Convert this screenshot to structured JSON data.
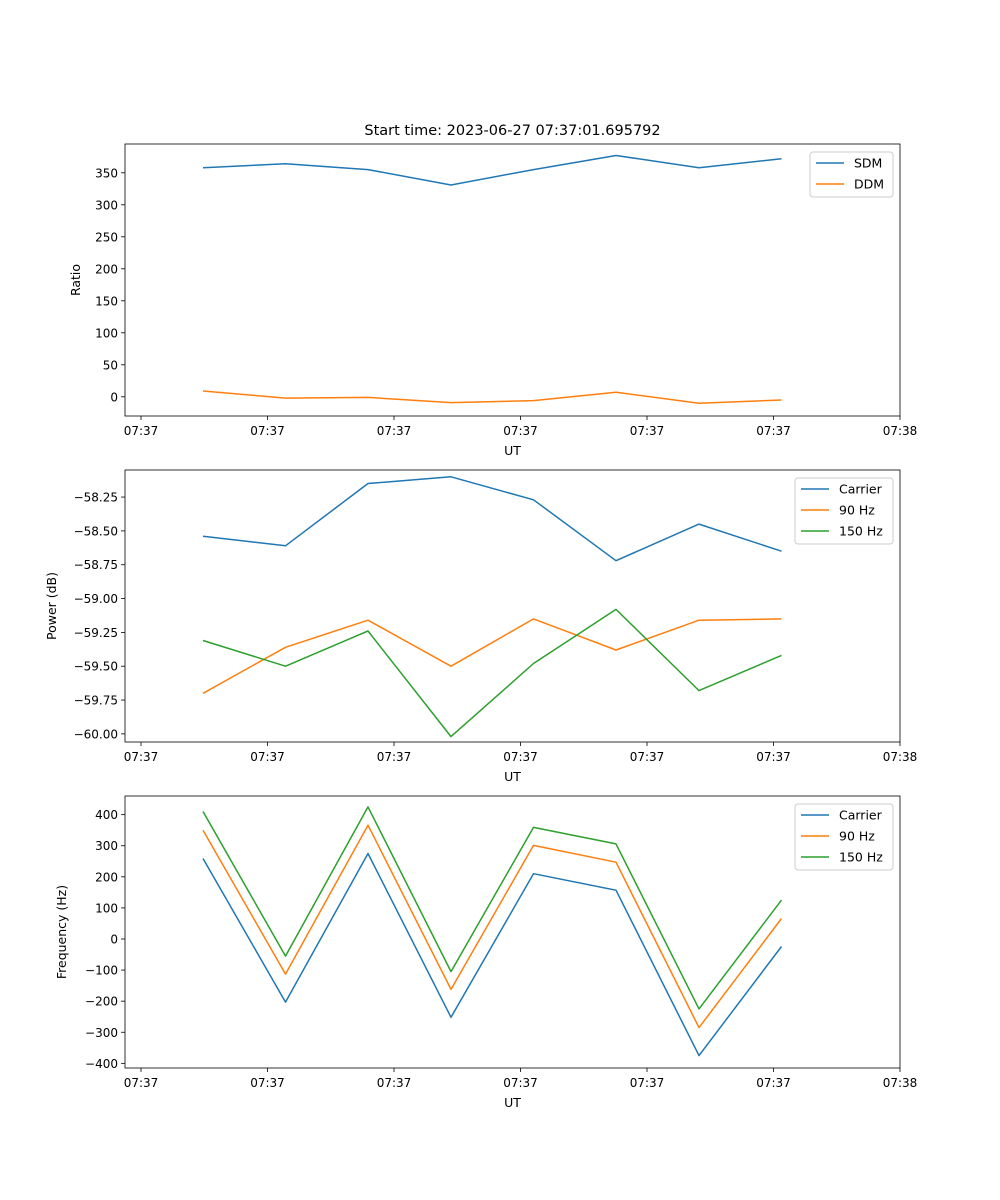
{
  "figure": {
    "title": "Start time: 2023-06-27 07:37:01.695792"
  },
  "colors": {
    "blue": "#1f77b4",
    "orange": "#ff7f0e",
    "green": "#2ca02c"
  },
  "chart_data": [
    {
      "type": "line",
      "title": "Start time: 2023-06-27 07:37:01.695792",
      "xlabel": "UT",
      "ylabel": "Ratio",
      "x_tick_labels": [
        "07:37",
        "07:37",
        "07:37",
        "07:37",
        "07:37",
        "07:37",
        "07:38"
      ],
      "y_ticks": [
        0,
        50,
        100,
        150,
        200,
        250,
        300,
        350
      ],
      "ylim": [
        -30,
        395
      ],
      "legend": "top-right",
      "series": [
        {
          "name": "SDM",
          "color": "#1f77b4",
          "values": [
            358,
            364,
            355,
            331,
            355,
            377,
            358,
            372
          ]
        },
        {
          "name": "DDM",
          "color": "#ff7f0e",
          "values": [
            9,
            -2,
            -1,
            -9,
            -6,
            7,
            -10,
            -5
          ]
        }
      ]
    },
    {
      "type": "line",
      "xlabel": "UT",
      "ylabel": "Power (dB)",
      "x_tick_labels": [
        "07:37",
        "07:37",
        "07:37",
        "07:37",
        "07:37",
        "07:37",
        "07:38"
      ],
      "y_ticks": [
        -60.0,
        -59.75,
        -59.5,
        -59.25,
        -59.0,
        -58.75,
        -58.5,
        -58.25
      ],
      "y_tick_labels": [
        "−60.00",
        "−59.75",
        "−59.50",
        "−59.25",
        "−59.00",
        "−58.75",
        "−58.50",
        "−58.25"
      ],
      "ylim": [
        -60.06,
        -58.05
      ],
      "legend": "top-right",
      "series": [
        {
          "name": "Carrier",
          "color": "#1f77b4",
          "values": [
            -58.54,
            -58.61,
            -58.15,
            -58.1,
            -58.27,
            -58.72,
            -58.45,
            -58.65
          ]
        },
        {
          "name": "90 Hz",
          "color": "#ff7f0e",
          "values": [
            -59.7,
            -59.36,
            -59.16,
            -59.5,
            -59.15,
            -59.38,
            -59.16,
            -59.15
          ]
        },
        {
          "name": "150 Hz",
          "color": "#2ca02c",
          "values": [
            -59.31,
            -59.5,
            -59.24,
            -60.02,
            -59.48,
            -59.08,
            -59.68,
            -59.42
          ]
        }
      ]
    },
    {
      "type": "line",
      "xlabel": "UT",
      "ylabel": "Frequency (Hz)",
      "x_tick_labels": [
        "07:37",
        "07:37",
        "07:37",
        "07:37",
        "07:37",
        "07:37",
        "07:38"
      ],
      "y_ticks": [
        -400,
        -300,
        -200,
        -100,
        0,
        100,
        200,
        300,
        400
      ],
      "y_tick_labels": [
        "−400",
        "−300",
        "−200",
        "−100",
        "0",
        "100",
        "200",
        "300",
        "400"
      ],
      "ylim": [
        -415,
        460
      ],
      "legend": "top-right",
      "series": [
        {
          "name": "Carrier",
          "color": "#1f77b4",
          "values": [
            259,
            -203,
            275,
            -252,
            210,
            157,
            -375,
            -24
          ]
        },
        {
          "name": "90 Hz",
          "color": "#ff7f0e",
          "values": [
            350,
            -113,
            366,
            -162,
            301,
            247,
            -285,
            66
          ]
        },
        {
          "name": "150 Hz",
          "color": "#2ca02c",
          "values": [
            410,
            -55,
            425,
            -105,
            359,
            306,
            -225,
            125
          ]
        }
      ]
    }
  ]
}
